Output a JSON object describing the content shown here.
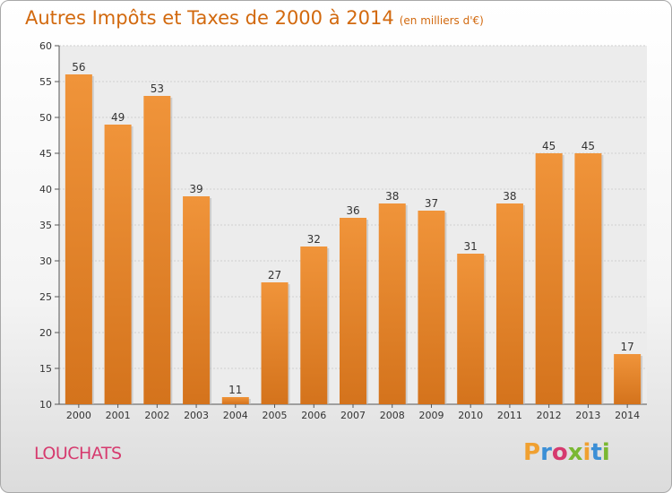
{
  "title": "Autres Impôts et Taxes de 2000 à 2014",
  "subtitle": "(en milliers d'€)",
  "place": "LOUCHATS",
  "logo": {
    "letters": [
      "P",
      "r",
      "o",
      "x",
      "i",
      "t",
      "i"
    ],
    "colors": [
      "#f0a030",
      "#3b8fd6",
      "#d63a6e",
      "#7ab833",
      "#f0a030",
      "#3b8fd6",
      "#7ab833"
    ]
  },
  "colors": {
    "bar": "#f0943a",
    "bar_dark": "#d4731c",
    "title": "#d2690e"
  },
  "chart_data": {
    "type": "bar",
    "title": "Autres Impôts et Taxes de 2000 à 2014",
    "categories": [
      "2000",
      "2001",
      "2002",
      "2003",
      "2004",
      "2005",
      "2006",
      "2007",
      "2008",
      "2009",
      "2010",
      "2011",
      "2012",
      "2013",
      "2014"
    ],
    "values": [
      56,
      49,
      53,
      39,
      11,
      27,
      32,
      36,
      38,
      37,
      31,
      38,
      45,
      45,
      17
    ],
    "ylim": [
      10,
      60
    ],
    "yticks": [
      10,
      15,
      20,
      25,
      30,
      35,
      40,
      45,
      50,
      55,
      60
    ],
    "grid": true
  }
}
